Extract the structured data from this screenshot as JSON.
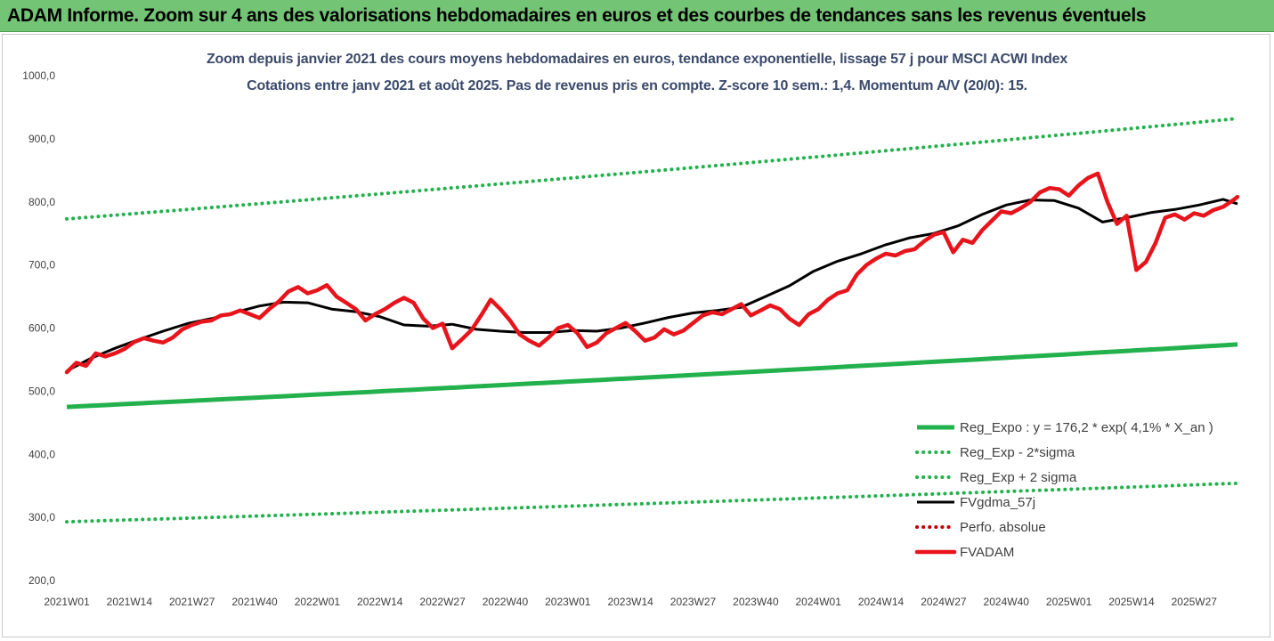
{
  "header": {
    "title": "ADAM Informe. Zoom sur 4 ans des valorisations hebdomadaires en euros et des courbes de tendances sans les revenus éventuels"
  },
  "chart_data": {
    "type": "line",
    "title": "Zoom depuis janvier 2021 des cours moyens hebdomadaires en euros, tendance exponentielle, lissage 57 j pour MSCI ACWI Index",
    "subtitle": "Cotations entre janv 2021 et août 2025. Pas de revenus pris en compte. Z-score 10 sem.: 1,4. Momentum A/V (20/0): 15.",
    "xlabel": "",
    "ylabel": "",
    "ylim": [
      200,
      1000
    ],
    "yticks": [
      "200,0",
      "300,0",
      "400,0",
      "500,0",
      "600,0",
      "700,0",
      "800,0",
      "900,0",
      "1000,0"
    ],
    "xticks": [
      "2021W01",
      "2021W14",
      "2021W27",
      "2021W40",
      "2022W01",
      "2022W14",
      "2022W27",
      "2022W40",
      "2023W01",
      "2023W14",
      "2023W27",
      "2023W40",
      "2024W01",
      "2024W14",
      "2024W27",
      "2024W40",
      "2025W01",
      "2025W14",
      "2025W27"
    ],
    "x_weeks_total": 243,
    "grid": false,
    "legend_position": "bottom-right",
    "series": [
      {
        "name": "Reg_Expo : y = 176,2 * exp( 4,1% * X_an )",
        "color": "#22b14c",
        "style": "solid",
        "x": [
          0,
          243
        ],
        "values": [
          475,
          574
        ]
      },
      {
        "name": "Reg_Exp - 2*sigma",
        "color": "#22b14c",
        "style": "dotted",
        "x": [
          0,
          243
        ],
        "values": [
          293,
          354
        ]
      },
      {
        "name": "Reg_Exp + 2 sigma",
        "color": "#22b14c",
        "style": "dotted",
        "x": [
          0,
          243
        ],
        "values": [
          773,
          932
        ]
      },
      {
        "name": "FVgdma_57j",
        "color": "#000000",
        "style": "solid",
        "x": [
          0,
          5,
          10,
          15,
          20,
          25,
          30,
          35,
          40,
          45,
          50,
          55,
          60,
          65,
          70,
          75,
          80,
          85,
          90,
          95,
          100,
          105,
          110,
          115,
          120,
          125,
          130,
          135,
          140,
          145,
          150,
          155,
          160,
          165,
          170,
          175,
          180,
          185,
          190,
          195,
          200,
          205,
          210,
          215,
          220,
          225,
          230,
          235,
          240,
          243
        ],
        "values": [
          532,
          552,
          568,
          582,
          595,
          607,
          615,
          625,
          635,
          641,
          640,
          630,
          626,
          618,
          605,
          603,
          606,
          598,
          595,
          593,
          593,
          596,
          595,
          600,
          608,
          617,
          624,
          628,
          633,
          650,
          667,
          690,
          706,
          718,
          732,
          743,
          750,
          762,
          780,
          795,
          803,
          802,
          790,
          768,
          775,
          783,
          788,
          795,
          804,
          797
        ]
      },
      {
        "name": "Perfo. absolue",
        "color": "#c00000",
        "style": "dotted",
        "x": [],
        "values": []
      },
      {
        "name": "FVADAM",
        "color": "#e8141c",
        "style": "solid",
        "x": [
          0,
          2,
          4,
          6,
          8,
          10,
          12,
          14,
          16,
          18,
          20,
          22,
          24,
          26,
          28,
          30,
          32,
          34,
          36,
          38,
          40,
          42,
          44,
          46,
          48,
          50,
          52,
          54,
          56,
          58,
          60,
          62,
          64,
          66,
          68,
          70,
          72,
          74,
          76,
          78,
          80,
          82,
          84,
          86,
          88,
          90,
          92,
          94,
          96,
          98,
          100,
          102,
          104,
          106,
          108,
          110,
          112,
          114,
          116,
          118,
          120,
          122,
          124,
          126,
          128,
          130,
          132,
          134,
          136,
          138,
          140,
          142,
          144,
          146,
          148,
          150,
          152,
          154,
          156,
          158,
          160,
          162,
          164,
          166,
          168,
          170,
          172,
          174,
          176,
          178,
          180,
          182,
          184,
          186,
          188,
          190,
          192,
          194,
          196,
          198,
          200,
          202,
          204,
          206,
          208,
          210,
          212,
          214,
          216,
          218,
          220,
          222,
          224,
          226,
          228,
          230,
          232,
          234,
          236,
          238,
          240,
          242,
          243
        ],
        "values": [
          530,
          545,
          540,
          560,
          555,
          560,
          567,
          578,
          584,
          580,
          577,
          585,
          598,
          605,
          610,
          612,
          620,
          622,
          628,
          622,
          616,
          630,
          642,
          658,
          665,
          655,
          660,
          668,
          650,
          640,
          630,
          612,
          622,
          630,
          640,
          648,
          640,
          615,
          600,
          607,
          568,
          582,
          597,
          620,
          645,
          630,
          612,
          590,
          580,
          572,
          585,
          600,
          605,
          592,
          570,
          577,
          592,
          600,
          608,
          595,
          580,
          585,
          598,
          590,
          596,
          608,
          620,
          625,
          622,
          630,
          638,
          620,
          628,
          636,
          630,
          615,
          605,
          622,
          630,
          645,
          655,
          660,
          685,
          700,
          710,
          718,
          715,
          722,
          725,
          738,
          748,
          752,
          720,
          740,
          735,
          755,
          770,
          785,
          782,
          790,
          800,
          815,
          822,
          820,
          810,
          826,
          838,
          845,
          800,
          765,
          778,
          692,
          705,
          735,
          775,
          780,
          772,
          782,
          778,
          787,
          792,
          802,
          808
        ]
      }
    ]
  }
}
